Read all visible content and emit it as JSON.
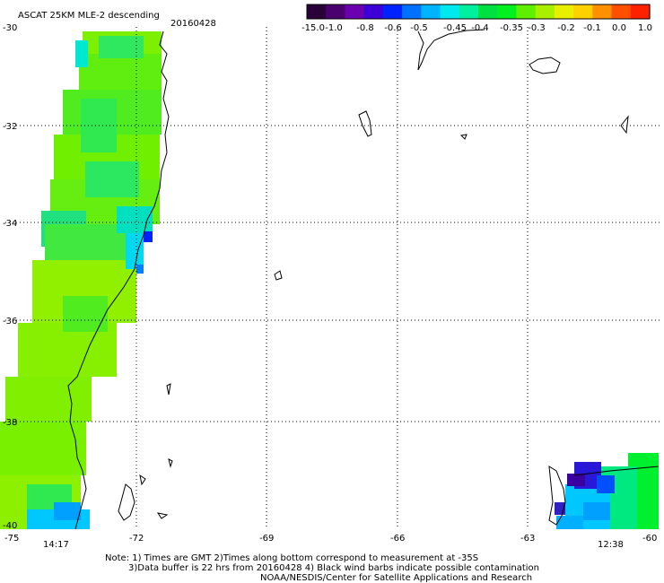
{
  "header": {
    "title": "ASCAT 25KM MLE-2 descending",
    "date": "20160428"
  },
  "colorbar": {
    "labels": [
      "-15.0",
      "-1.0",
      "-0.8",
      "-0.6",
      "-0.5",
      "-0.45",
      "-0.4",
      "-0.35",
      "-0.3",
      "-0.2",
      "-0.1",
      "0.0",
      "1.0"
    ],
    "colors": [
      "#2a0038",
      "#4a006e",
      "#6a00b0",
      "#3c00d8",
      "#0022ff",
      "#0070ff",
      "#00b4ff",
      "#00e8f0",
      "#00f0a0",
      "#00e040",
      "#00f020",
      "#5ef000",
      "#a8f000",
      "#e8f000",
      "#ffd000",
      "#ff9000",
      "#ff5000",
      "#ff2000"
    ]
  },
  "axes": {
    "lat_labels": [
      "-30",
      "-32",
      "-34",
      "-36",
      "-38",
      "-40"
    ],
    "lon_labels": [
      "-75",
      "-72",
      "-69",
      "-66",
      "-63",
      "-60"
    ]
  },
  "times": {
    "left": "14:17",
    "right": "12:38",
    "color": "#cc2200"
  },
  "notes": {
    "line1": "Note: 1) Times are GMT 2)Times along bottom correspond to measurement at -35S",
    "line2": "3)Data buffer is 22 hrs from 20160428 4) Black wind barbs indicate possible contamination",
    "line3": "NOAA/NESDIS/Center for Satellite Applications and Research"
  }
}
